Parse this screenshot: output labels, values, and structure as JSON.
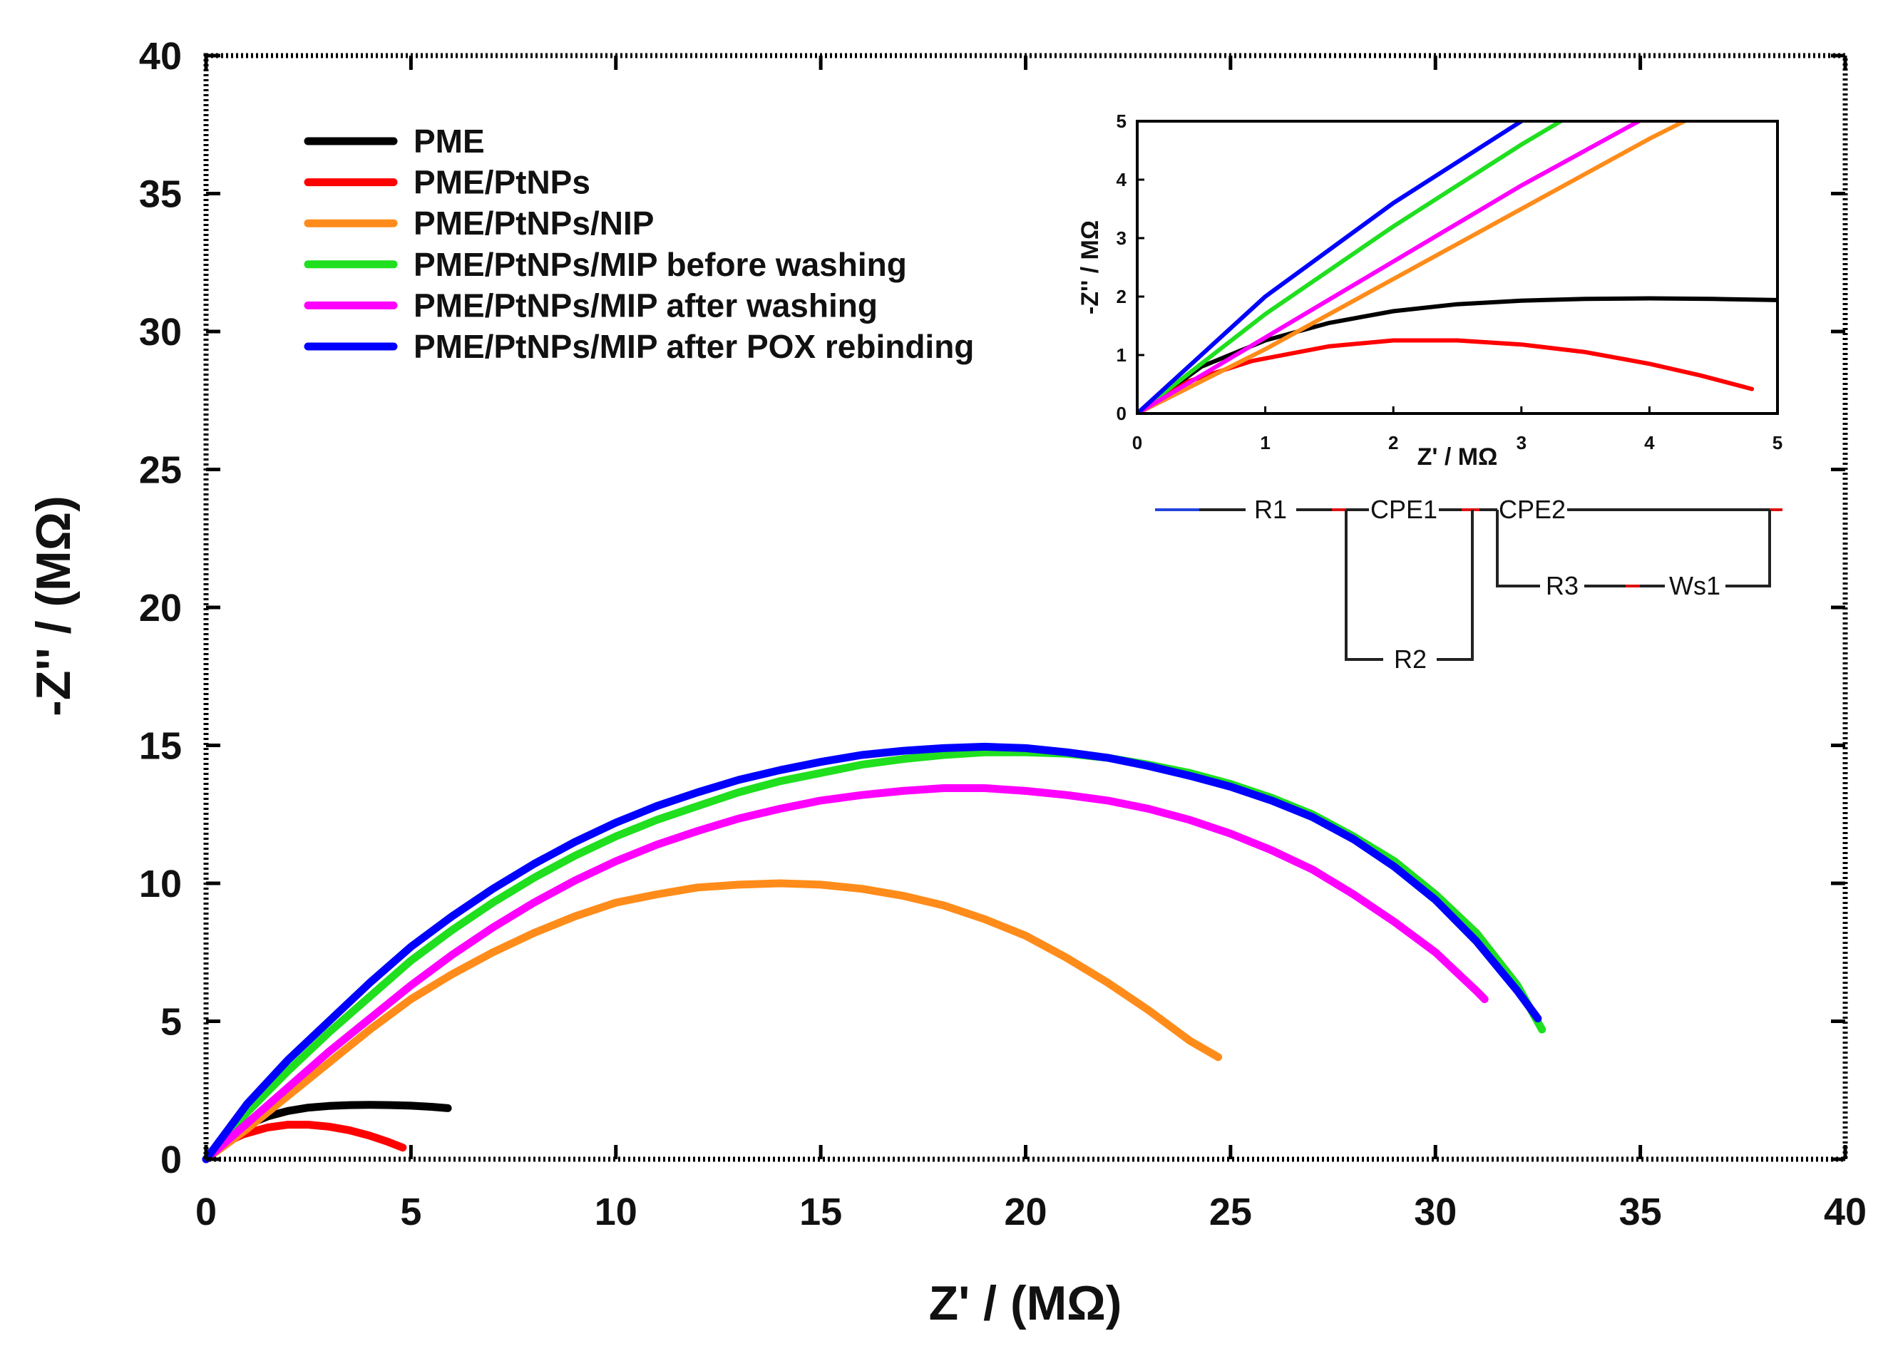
{
  "chart_data": {
    "type": "line",
    "title": "",
    "xlabel": "Z' / (MΩ)",
    "ylabel": "-Z'' / (MΩ)",
    "xlim": [
      0,
      40
    ],
    "ylim": [
      0,
      40
    ],
    "xticks": [
      "0",
      "5",
      "10",
      "15",
      "20",
      "25",
      "30",
      "35",
      "40"
    ],
    "yticks": [
      "0",
      "5",
      "10",
      "15",
      "20",
      "25",
      "30",
      "35",
      "40"
    ],
    "legend_position": "top-left",
    "series": [
      {
        "name": "PME",
        "color": "#000000",
        "x": [
          0,
          0.5,
          1,
          1.5,
          2,
          2.5,
          3,
          3.5,
          4,
          4.5,
          5,
          5.5,
          5.9
        ],
        "y": [
          0,
          0.8,
          1.25,
          1.55,
          1.75,
          1.87,
          1.93,
          1.96,
          1.97,
          1.96,
          1.94,
          1.9,
          1.85
        ]
      },
      {
        "name": "PME/PtNPs",
        "color": "#ff0000",
        "x": [
          0,
          0.4,
          0.9,
          1.5,
          2,
          2.5,
          3,
          3.5,
          4,
          4.4,
          4.8
        ],
        "y": [
          0,
          0.55,
          0.9,
          1.15,
          1.25,
          1.25,
          1.18,
          1.05,
          0.85,
          0.65,
          0.42
        ]
      },
      {
        "name": "PME/PtNPs/NIP",
        "color": "#ff8c1a",
        "x": [
          0,
          1,
          2,
          3,
          4,
          5,
          6,
          7,
          8,
          9,
          10,
          11,
          12,
          13,
          14,
          15,
          16,
          17,
          18,
          19,
          20,
          21,
          22,
          23,
          24,
          24.7
        ],
        "y": [
          0,
          1.1,
          2.3,
          3.5,
          4.7,
          5.8,
          6.7,
          7.5,
          8.2,
          8.8,
          9.3,
          9.6,
          9.85,
          9.95,
          10.0,
          9.95,
          9.8,
          9.55,
          9.2,
          8.7,
          8.1,
          7.3,
          6.4,
          5.4,
          4.3,
          3.7
        ]
      },
      {
        "name": "PME/PtNPs/MIP before washing",
        "color": "#1fdf1f",
        "x": [
          0,
          1,
          2,
          3,
          4,
          5,
          6,
          7,
          8,
          9,
          10,
          11,
          12,
          13,
          14,
          15,
          16,
          17,
          18,
          19,
          20,
          21,
          22,
          23,
          24,
          25,
          26,
          27,
          28,
          29,
          30,
          31,
          32,
          32.6
        ],
        "y": [
          0,
          1.7,
          3.2,
          4.6,
          5.9,
          7.2,
          8.3,
          9.3,
          10.2,
          11.0,
          11.7,
          12.3,
          12.8,
          13.3,
          13.7,
          14.0,
          14.3,
          14.5,
          14.65,
          14.75,
          14.75,
          14.7,
          14.55,
          14.3,
          14.0,
          13.6,
          13.1,
          12.5,
          11.7,
          10.8,
          9.6,
          8.2,
          6.3,
          4.7
        ]
      },
      {
        "name": "PME/PtNPs/MIP after washing",
        "color": "#ff00ff",
        "x": [
          0,
          1,
          2,
          3,
          4,
          5,
          6,
          7,
          8,
          9,
          10,
          11,
          12,
          13,
          14,
          15,
          16,
          17,
          18,
          19,
          20,
          21,
          22,
          23,
          24,
          25,
          26,
          27,
          28,
          29,
          30,
          31,
          31.2
        ],
        "y": [
          0,
          1.3,
          2.6,
          3.9,
          5.1,
          6.3,
          7.4,
          8.4,
          9.3,
          10.1,
          10.8,
          11.4,
          11.9,
          12.35,
          12.7,
          13.0,
          13.2,
          13.35,
          13.45,
          13.45,
          13.35,
          13.2,
          13.0,
          12.7,
          12.3,
          11.8,
          11.2,
          10.5,
          9.6,
          8.6,
          7.5,
          6.1,
          5.8
        ]
      },
      {
        "name": "PME/PtNPs/MIP after POX rebinding",
        "color": "#0000ff",
        "x": [
          0,
          1,
          2,
          3,
          4,
          5,
          6,
          7,
          8,
          9,
          10,
          11,
          12,
          13,
          14,
          15,
          16,
          17,
          18,
          19,
          20,
          21,
          22,
          23,
          24,
          25,
          26,
          27,
          28,
          29,
          30,
          31,
          32,
          32.5
        ],
        "y": [
          0,
          2.0,
          3.6,
          5.0,
          6.4,
          7.7,
          8.8,
          9.8,
          10.7,
          11.5,
          12.2,
          12.8,
          13.3,
          13.75,
          14.1,
          14.4,
          14.65,
          14.8,
          14.9,
          14.95,
          14.9,
          14.75,
          14.55,
          14.25,
          13.9,
          13.5,
          13.0,
          12.4,
          11.6,
          10.6,
          9.4,
          7.9,
          6.1,
          5.1
        ]
      }
    ],
    "inset": {
      "xlabel": "Z' / MΩ",
      "ylabel": "-Z'' / MΩ",
      "xlim": [
        0,
        5
      ],
      "ylim": [
        0,
        5
      ],
      "xticks": [
        "0",
        "1",
        "2",
        "3",
        "4",
        "5"
      ],
      "yticks": [
        "0",
        "1",
        "2",
        "3",
        "4",
        "5"
      ]
    },
    "circuit": {
      "labels": [
        "R1",
        "CPE1",
        "R2",
        "CPE2",
        "R3",
        "Ws1"
      ]
    }
  }
}
